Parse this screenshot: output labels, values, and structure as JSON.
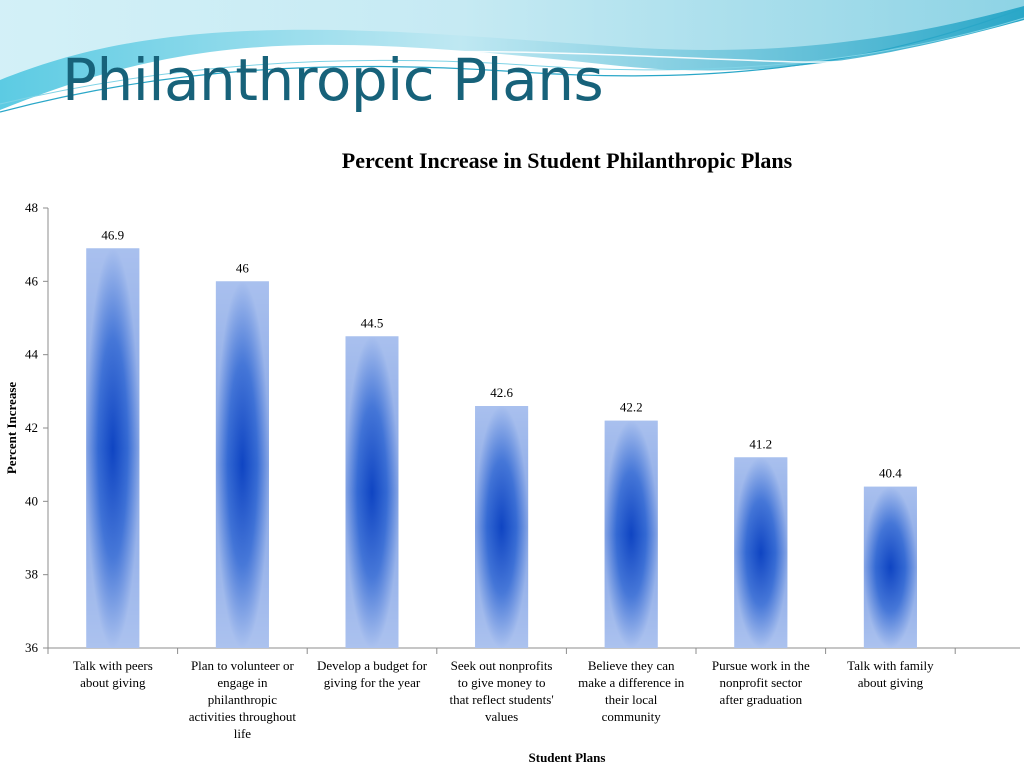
{
  "slide": {
    "title": "Philanthropic Plans"
  },
  "theme": {
    "title_color": "#17627a",
    "wave_light": "#bfe8f2",
    "wave_mid": "#7fd3e6",
    "wave_dark": "#2aa7c8",
    "bar_edge": "#a9c0ee",
    "bar_center": "#0a3fc0"
  },
  "chart_data": {
    "type": "bar",
    "title": "Percent Increase in Student Philanthropic Plans",
    "xlabel": "Student Plans",
    "ylabel": "Percent Increase",
    "ylim": [
      36,
      48
    ],
    "yticks": [
      36,
      38,
      40,
      42,
      44,
      46,
      48
    ],
    "grid": false,
    "categories": [
      [
        "Talk with peers",
        "about giving"
      ],
      [
        "Plan to volunteer or",
        "engage in",
        "philanthropic",
        "activities throughout",
        "life"
      ],
      [
        "Develop a budget for",
        "giving for the year"
      ],
      [
        "Seek out nonprofits",
        "to give money to",
        "that reflect students'",
        "values"
      ],
      [
        "Believe they can",
        "make a difference in",
        "their local",
        "community"
      ],
      [
        "Pursue work in the",
        "nonprofit sector",
        "after graduation"
      ],
      [
        "Talk with family",
        "about giving"
      ]
    ],
    "values": [
      46.9,
      46,
      44.5,
      42.6,
      42.2,
      41.2,
      40.4
    ],
    "data_labels": [
      "46.9",
      "46",
      "44.5",
      "42.6",
      "42.2",
      "41.2",
      "40.4"
    ]
  }
}
